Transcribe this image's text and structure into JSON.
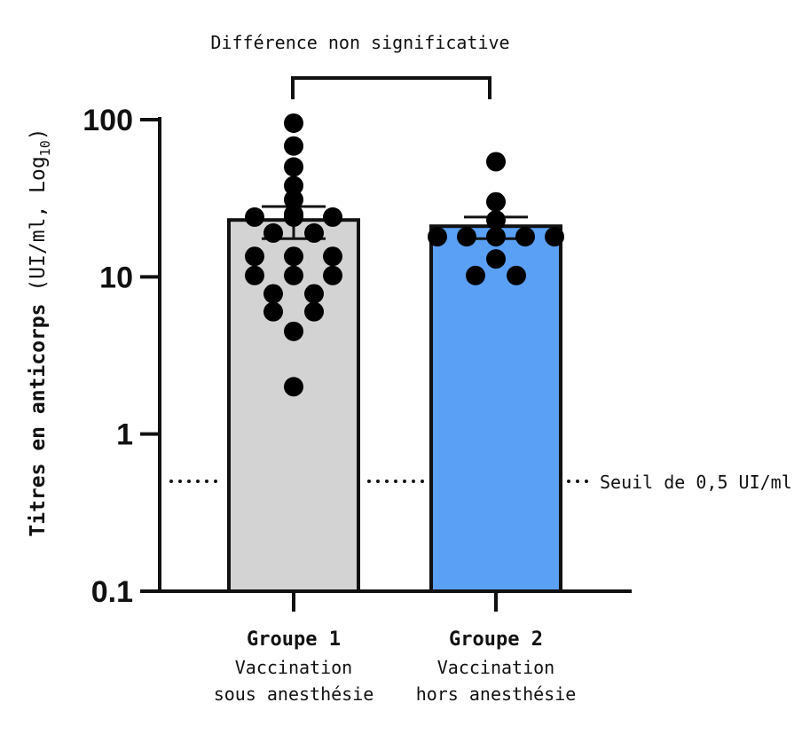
{
  "chart_data": {
    "type": "bar",
    "yscale": "log10",
    "ylim": [
      0.1,
      100
    ],
    "y_ticks": [
      {
        "value": 0.1,
        "label": "0.1"
      },
      {
        "value": 1,
        "label": "1"
      },
      {
        "value": 10,
        "label": "10"
      },
      {
        "value": 100,
        "label": "100"
      }
    ],
    "ylabel": {
      "bold": "Titres en anticorps",
      "normal": "(UI/ml, Log",
      "sub": "10",
      "close": ")"
    },
    "categories": [
      {
        "title": "Groupe 1",
        "subtitle_1": "Vaccination",
        "subtitle_2": "sous anesthésie"
      },
      {
        "title": "Groupe 2",
        "subtitle_1": "Vaccination",
        "subtitle_2": "hors anesthésie"
      }
    ],
    "series": [
      {
        "name": "Groupe 1",
        "mean": 23,
        "error_low": 17.5,
        "error_high": 28,
        "color": "#d3d3d3",
        "points": [
          95,
          68,
          50,
          38,
          31,
          25,
          24,
          24,
          24,
          19,
          19,
          13.5,
          13.5,
          13.5,
          10.2,
          10.2,
          10.2,
          7.8,
          7.8,
          6,
          6,
          4.5,
          2
        ]
      },
      {
        "name": "Groupe 2",
        "mean": 21,
        "error_low": 17.5,
        "error_high": 24,
        "color": "#5aa0f5",
        "points": [
          54,
          30,
          23,
          18,
          18,
          18,
          18,
          18,
          13,
          10.2,
          10.2
        ]
      }
    ],
    "threshold": {
      "value": 0.5,
      "label": "Seuil de 0,5 UI/ml"
    },
    "comparison_label": "Différence non significative"
  },
  "colors": {
    "axis": "#111111",
    "point": "#000000",
    "bar_group1": "#d3d3d3",
    "bar_group2": "#5aa0f5"
  }
}
